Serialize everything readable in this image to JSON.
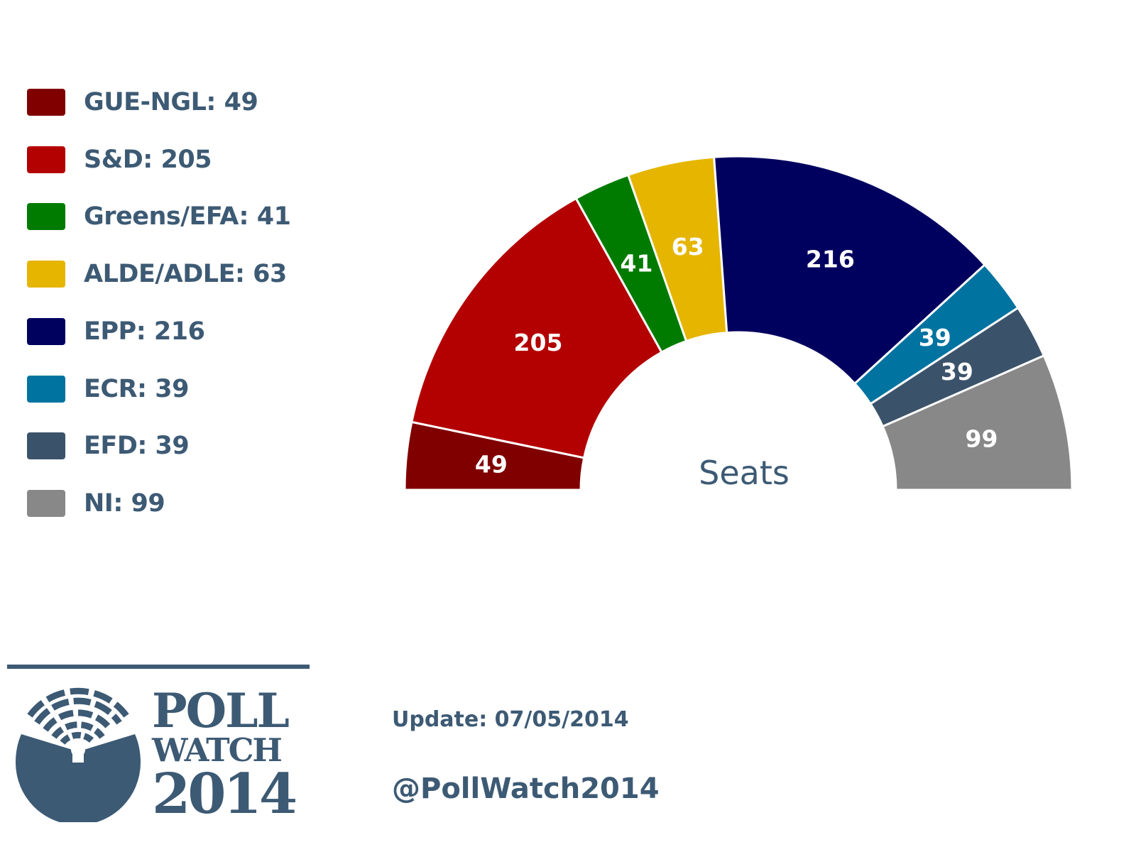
{
  "chart_data": {
    "type": "pie",
    "subtype": "parliament-semicircle",
    "center_label": "Seats",
    "legend_position": "left",
    "series": [
      {
        "name": "GUE-NGL",
        "value": 49,
        "color": "#800000",
        "legend_label": "GUE-NGL: 49",
        "data_label": "49"
      },
      {
        "name": "S&D",
        "value": 205,
        "color": "#b30000",
        "legend_label": "S&D: 205",
        "data_label": "205"
      },
      {
        "name": "Greens/EFA",
        "value": 41,
        "color": "#007b00",
        "legend_label": "Greens/EFA: 41",
        "data_label": "41"
      },
      {
        "name": "ALDE/ADLE",
        "value": 63,
        "color": "#e5b500",
        "legend_label": "ALDE/ADLE: 63",
        "data_label": "63"
      },
      {
        "name": "EPP",
        "value": 216,
        "color": "#00005f",
        "legend_label": "EPP: 216",
        "data_label": "216"
      },
      {
        "name": "ECR",
        "value": 39,
        "color": "#0073a0",
        "legend_label": "ECR: 39",
        "data_label": "39"
      },
      {
        "name": "EFD",
        "value": 39,
        "color": "#3b536a",
        "legend_label": "EFD: 39",
        "data_label": "39"
      },
      {
        "name": "NI",
        "value": 99,
        "color": "#888888",
        "legend_label": "NI: 99",
        "data_label": "99"
      }
    ]
  },
  "footer": {
    "update": "Update: 07/05/2014",
    "handle": "@PollWatch2014"
  },
  "logo": {
    "line1": "POLL",
    "line2": "WATCH",
    "line3": "2014",
    "color": "#3d5a74"
  }
}
